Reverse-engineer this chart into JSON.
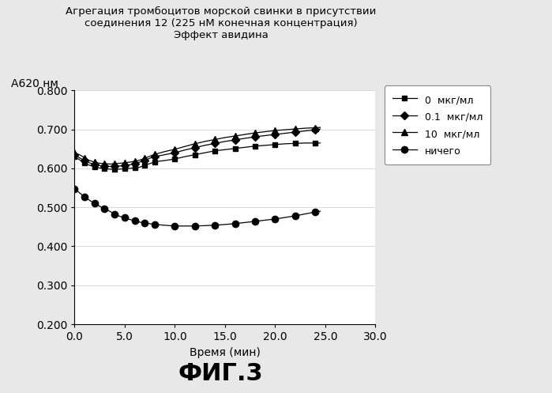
{
  "title_line1": "Агрегация тромбоцитов морской свинки в присутствии",
  "title_line2": "соединения 12 (225 нМ конечная концентрация)",
  "title_line3": "Эффект авидина",
  "ylabel": "А620 нм",
  "xlabel": "Время (мин)",
  "fig_label": "ФИГ.3",
  "xlim": [
    0,
    30
  ],
  "ylim": [
    0.2,
    0.8
  ],
  "yticks": [
    0.2,
    0.3,
    0.4,
    0.5,
    0.6,
    0.7,
    0.8
  ],
  "xticks": [
    0.0,
    5.0,
    10.0,
    15.0,
    20.0,
    25.0,
    30.0
  ],
  "series": {
    "s0": {
      "label": "0  мкг/мл",
      "color": "#000000",
      "marker": "s",
      "x": [
        0.0,
        0.5,
        1.0,
        1.5,
        2.0,
        2.5,
        3.0,
        3.5,
        4.0,
        4.5,
        5.0,
        5.5,
        6.0,
        6.5,
        7.0,
        7.5,
        8.0,
        9.0,
        10.0,
        11.0,
        12.0,
        13.0,
        14.0,
        15.0,
        16.0,
        17.0,
        18.0,
        19.0,
        20.0,
        21.0,
        22.0,
        23.0,
        24.0,
        24.5
      ],
      "y": [
        0.63,
        0.622,
        0.613,
        0.608,
        0.604,
        0.601,
        0.599,
        0.598,
        0.597,
        0.598,
        0.599,
        0.6,
        0.601,
        0.603,
        0.608,
        0.612,
        0.617,
        0.62,
        0.624,
        0.63,
        0.635,
        0.64,
        0.645,
        0.648,
        0.651,
        0.654,
        0.657,
        0.659,
        0.661,
        0.663,
        0.664,
        0.665,
        0.665,
        0.665
      ]
    },
    "s01": {
      "label": "0.1  мкг/мл",
      "color": "#000000",
      "marker": "D",
      "x": [
        0.0,
        0.5,
        1.0,
        1.5,
        2.0,
        2.5,
        3.0,
        3.5,
        4.0,
        4.5,
        5.0,
        5.5,
        6.0,
        6.5,
        7.0,
        7.5,
        8.0,
        9.0,
        10.0,
        11.0,
        12.0,
        13.0,
        14.0,
        15.0,
        16.0,
        17.0,
        18.0,
        19.0,
        20.0,
        21.0,
        22.0,
        23.0,
        24.0,
        24.5
      ],
      "y": [
        0.635,
        0.627,
        0.62,
        0.614,
        0.61,
        0.607,
        0.606,
        0.605,
        0.605,
        0.606,
        0.607,
        0.609,
        0.612,
        0.616,
        0.62,
        0.626,
        0.63,
        0.635,
        0.64,
        0.647,
        0.653,
        0.659,
        0.664,
        0.669,
        0.673,
        0.677,
        0.681,
        0.684,
        0.687,
        0.69,
        0.693,
        0.696,
        0.699,
        0.701
      ]
    },
    "s10": {
      "label": "10  мкг/мл",
      "color": "#000000",
      "marker": "^",
      "x": [
        0.0,
        0.5,
        1.0,
        1.5,
        2.0,
        2.5,
        3.0,
        3.5,
        4.0,
        4.5,
        5.0,
        5.5,
        6.0,
        6.5,
        7.0,
        7.5,
        8.0,
        9.0,
        10.0,
        11.0,
        12.0,
        13.0,
        14.0,
        15.0,
        16.0,
        17.0,
        18.0,
        19.0,
        20.0,
        21.0,
        22.0,
        23.0,
        24.0,
        24.5
      ],
      "y": [
        0.64,
        0.635,
        0.627,
        0.62,
        0.616,
        0.613,
        0.612,
        0.611,
        0.612,
        0.613,
        0.614,
        0.616,
        0.618,
        0.621,
        0.626,
        0.631,
        0.636,
        0.643,
        0.649,
        0.656,
        0.663,
        0.669,
        0.674,
        0.679,
        0.683,
        0.687,
        0.691,
        0.694,
        0.697,
        0.699,
        0.701,
        0.703,
        0.704,
        0.705
      ]
    },
    "sn": {
      "label": "ничего",
      "color": "#000000",
      "marker": "o",
      "x": [
        0.0,
        0.5,
        1.0,
        1.5,
        2.0,
        2.5,
        3.0,
        3.5,
        4.0,
        4.5,
        5.0,
        5.5,
        6.0,
        6.5,
        7.0,
        7.5,
        8.0,
        9.0,
        10.0,
        11.0,
        12.0,
        13.0,
        14.0,
        15.0,
        16.0,
        17.0,
        18.0,
        19.0,
        20.0,
        21.0,
        22.0,
        23.0,
        24.0,
        24.5
      ],
      "y": [
        0.548,
        0.537,
        0.527,
        0.518,
        0.51,
        0.503,
        0.496,
        0.49,
        0.483,
        0.477,
        0.473,
        0.469,
        0.465,
        0.462,
        0.46,
        0.458,
        0.456,
        0.454,
        0.452,
        0.452,
        0.452,
        0.453,
        0.454,
        0.456,
        0.458,
        0.461,
        0.464,
        0.467,
        0.47,
        0.474,
        0.478,
        0.483,
        0.488,
        0.49
      ]
    }
  },
  "fig_bg_color": "#e8e8e8",
  "plot_bg_color": "#ffffff",
  "border_color": "#000000"
}
